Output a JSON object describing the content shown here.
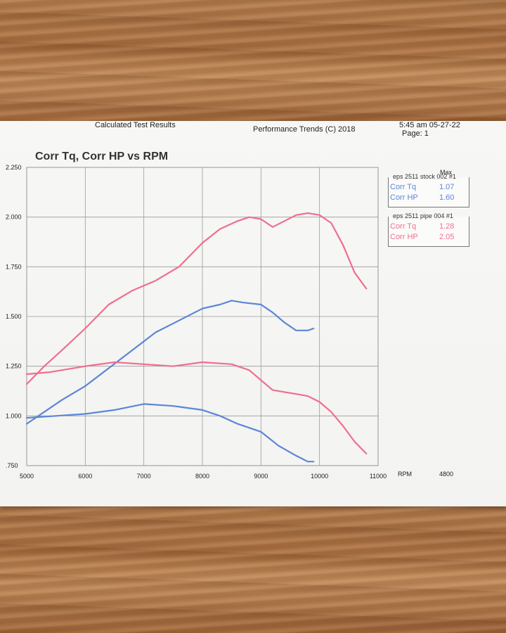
{
  "header": {
    "left_text": "Calculated Test Results",
    "center_text": "Performance Trends (C) 2018",
    "right_top": "5:45 am 05-27-22",
    "page_label": "Page: 1"
  },
  "legend": {
    "max_label": "Max",
    "runs": [
      {
        "name": "eps 2511 stock 002",
        "marker": "#1",
        "color": "#5b86d8",
        "rows": [
          {
            "label": "Corr Tq",
            "max": "1.07"
          },
          {
            "label": "Corr HP",
            "max": "1.60"
          }
        ]
      },
      {
        "name": "eps 2511 pipe 004",
        "marker": "#1",
        "color": "#ef6f8e",
        "rows": [
          {
            "label": "Corr Tq",
            "max": "1.28"
          },
          {
            "label": "Corr HP",
            "max": "2.05"
          }
        ]
      }
    ]
  },
  "extra_label": "4800",
  "chart_data": {
    "type": "line",
    "title": "Corr Tq, Corr HP vs RPM",
    "xlabel": "RPM",
    "ylabel": "",
    "xlim": [
      5000,
      11000
    ],
    "ylim": [
      0.75,
      2.25
    ],
    "x_ticks": [
      "5000",
      "6000",
      "7000",
      "8000",
      "9000",
      "10000",
      "11000"
    ],
    "y_ticks": [
      ".750",
      "1.000",
      "1.250",
      "1.500",
      "1.750",
      "2.000",
      "2.250"
    ],
    "grid": true,
    "series": [
      {
        "name": "Corr HP",
        "run": "eps 2511 pipe 004",
        "color": "#ef6f8e",
        "x": [
          5000,
          5300,
          5600,
          6000,
          6400,
          6800,
          7200,
          7600,
          8000,
          8300,
          8600,
          8800,
          9000,
          9200,
          9400,
          9600,
          9800,
          10000,
          10200,
          10400,
          10600,
          10800
        ],
        "y": [
          1.16,
          1.25,
          1.33,
          1.44,
          1.56,
          1.63,
          1.68,
          1.75,
          1.87,
          1.94,
          1.98,
          2.0,
          1.99,
          1.95,
          1.98,
          2.01,
          2.02,
          2.01,
          1.97,
          1.86,
          1.72,
          1.64
        ]
      },
      {
        "name": "Corr HP",
        "run": "eps 2511 stock 002",
        "color": "#5b86d8",
        "x": [
          5000,
          5300,
          5600,
          6000,
          6400,
          6800,
          7200,
          7600,
          8000,
          8300,
          8500,
          8700,
          9000,
          9200,
          9400,
          9600,
          9800,
          9900
        ],
        "y": [
          0.96,
          1.02,
          1.08,
          1.15,
          1.24,
          1.33,
          1.42,
          1.48,
          1.54,
          1.56,
          1.58,
          1.57,
          1.56,
          1.52,
          1.47,
          1.43,
          1.43,
          1.44
        ]
      },
      {
        "name": "Corr Tq",
        "run": "eps 2511 pipe 004",
        "color": "#ef6f8e",
        "x": [
          5000,
          5400,
          6000,
          6500,
          7000,
          7500,
          8000,
          8500,
          8800,
          9000,
          9200,
          9400,
          9600,
          9800,
          10000,
          10200,
          10400,
          10600,
          10800
        ],
        "y": [
          1.21,
          1.22,
          1.25,
          1.27,
          1.26,
          1.25,
          1.27,
          1.26,
          1.23,
          1.18,
          1.13,
          1.12,
          1.11,
          1.1,
          1.07,
          1.02,
          0.95,
          0.87,
          0.81
        ]
      },
      {
        "name": "Corr Tq",
        "run": "eps 2511 stock 002",
        "color": "#5b86d8",
        "x": [
          5000,
          5500,
          6000,
          6500,
          7000,
          7500,
          8000,
          8300,
          8600,
          9000,
          9300,
          9600,
          9800,
          9900
        ],
        "y": [
          0.99,
          1.0,
          1.01,
          1.03,
          1.06,
          1.05,
          1.03,
          1.0,
          0.96,
          0.92,
          0.85,
          0.8,
          0.77,
          0.77
        ]
      }
    ]
  }
}
